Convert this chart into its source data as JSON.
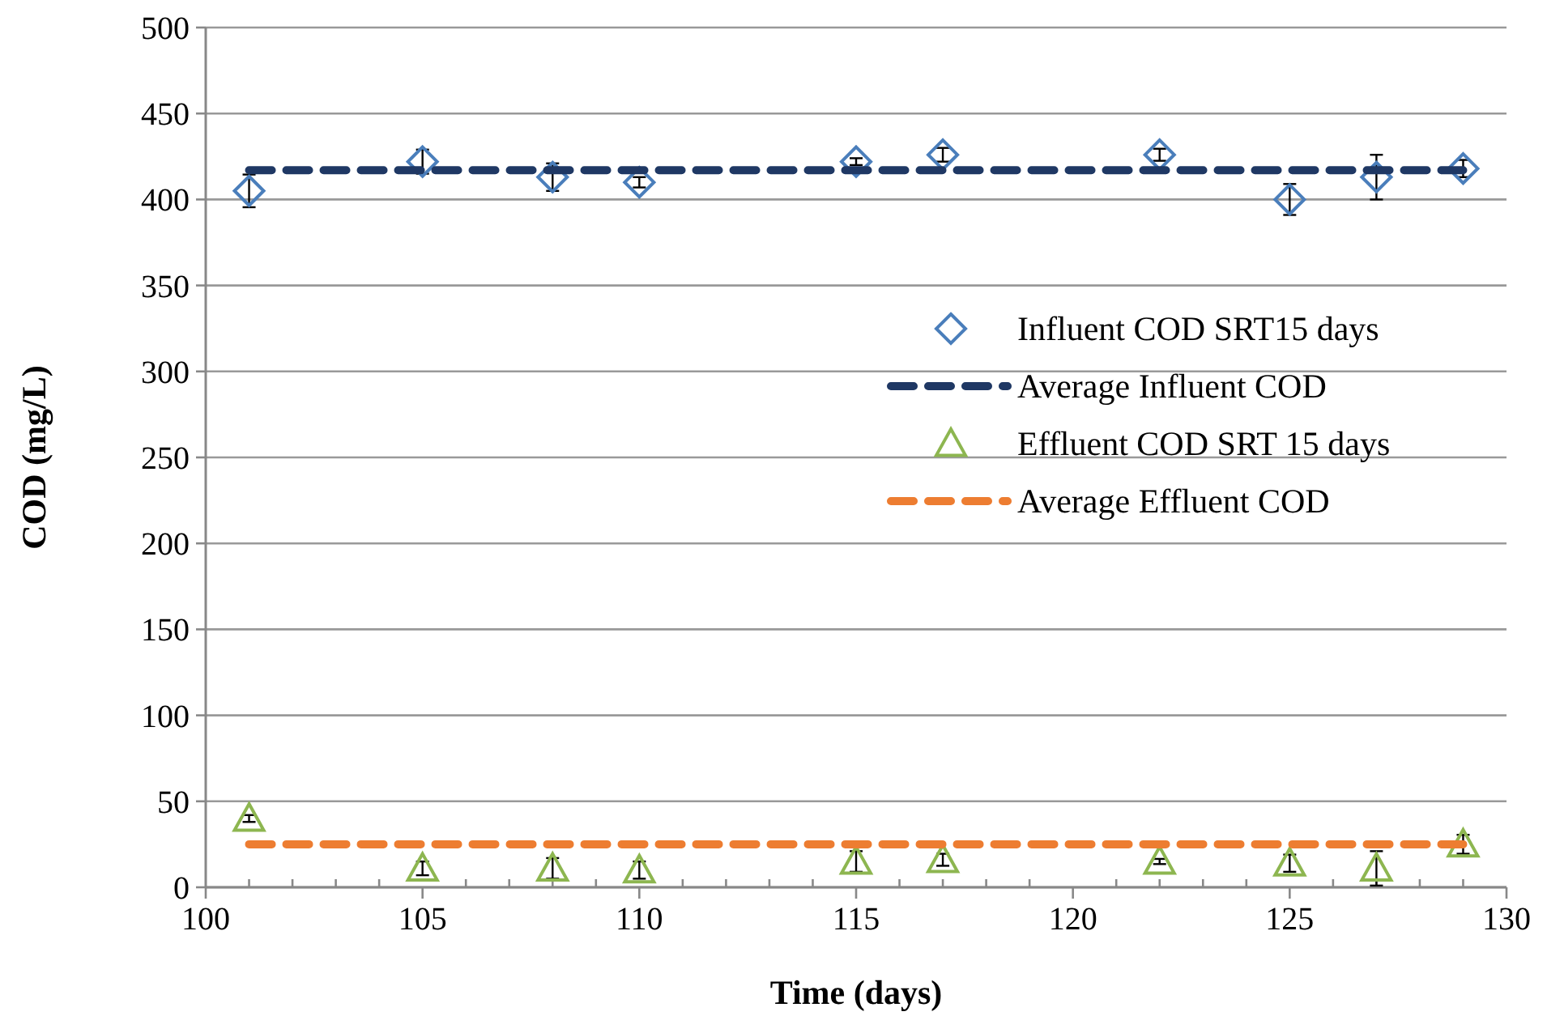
{
  "chart_data": {
    "type": "scatter",
    "xlabel": "Time (days)",
    "ylabel": "COD (mg/L)",
    "xlim": [
      100,
      130
    ],
    "ylim": [
      0,
      500
    ],
    "xticks": [
      100,
      {
        "value": 101,
        "label": null
      },
      {
        "value": 102,
        "label": null
      },
      {
        "value": 103,
        "label": null
      },
      {
        "value": 104,
        "label": null
      },
      105,
      {
        "value": 106,
        "label": null
      },
      {
        "value": 107,
        "label": null
      },
      {
        "value": 108,
        "label": null
      },
      {
        "value": 109,
        "label": null
      },
      110,
      {
        "value": 111,
        "label": null
      },
      {
        "value": 112,
        "label": null
      },
      {
        "value": 113,
        "label": null
      },
      {
        "value": 114,
        "label": null
      },
      115,
      {
        "value": 116,
        "label": null
      },
      {
        "value": 117,
        "label": null
      },
      {
        "value": 118,
        "label": null
      },
      {
        "value": 119,
        "label": null
      },
      120,
      {
        "value": 121,
        "label": null
      },
      {
        "value": 122,
        "label": null
      },
      {
        "value": 123,
        "label": null
      },
      {
        "value": 124,
        "label": null
      },
      125,
      {
        "value": 126,
        "label": null
      },
      {
        "value": 127,
        "label": null
      },
      {
        "value": 128,
        "label": null
      },
      {
        "value": 129,
        "label": null
      },
      130
    ],
    "yticks": [
      0,
      50,
      100,
      150,
      200,
      250,
      300,
      350,
      400,
      450,
      500
    ],
    "grid": "y",
    "legend": "right",
    "series": [
      {
        "name": "Influent COD SRT15 days",
        "marker": "diamond",
        "color": "#4a7ebb",
        "x": [
          101,
          105,
          108,
          110,
          115,
          117,
          122,
          125,
          127,
          129
        ],
        "values": [
          405,
          422,
          413,
          410,
          422,
          426,
          426,
          400,
          413,
          418
        ],
        "errors": [
          9.5,
          7,
          8,
          3,
          2,
          4,
          3.5,
          9,
          13,
          5
        ]
      },
      {
        "name": "Average Influent COD",
        "type": "line",
        "marker": "none",
        "line_style": "dashed",
        "color": "#1f3864",
        "x": [
          101,
          129
        ],
        "values": [
          417,
          417
        ]
      },
      {
        "name": "Effluent COD SRT 15 days",
        "marker": "triangle",
        "color": "#8db650",
        "x": [
          101,
          105,
          108,
          110,
          115,
          117,
          122,
          125,
          127,
          129
        ],
        "values": [
          40,
          11,
          11,
          10,
          15,
          16,
          15,
          14,
          11,
          25
        ],
        "errors": [
          2,
          4,
          6,
          5,
          6,
          3.5,
          1.5,
          5,
          10,
          5.5
        ]
      },
      {
        "name": "Average Effluent COD",
        "type": "line",
        "marker": "none",
        "line_style": "dashed",
        "color": "#ed7d31",
        "x": [
          101,
          129
        ],
        "values": [
          25,
          25
        ]
      }
    ]
  }
}
